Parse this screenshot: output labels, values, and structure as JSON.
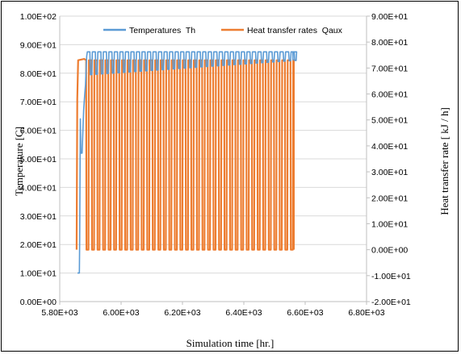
{
  "chart_data": {
    "type": "line",
    "title": "",
    "xlabel": "Simulation time  [hr.]",
    "ylabel_left": "Temperature [C]",
    "ylabel_right": "Heat transfer rate [ kJ / h]",
    "xlim": [
      5800,
      6800
    ],
    "ylim_left": [
      0,
      100
    ],
    "ylim_right": [
      -20,
      90
    ],
    "x_ticks": [
      "5.80E+03",
      "6.00E+03",
      "6.20E+03",
      "6.40E+03",
      "6.60E+03",
      "6.80E+03"
    ],
    "y_left_ticks": [
      "0.00E+00",
      "1.00E+01",
      "2.00E+01",
      "3.00E+01",
      "4.00E+01",
      "5.00E+01",
      "6.00E+01",
      "7.00E+01",
      "8.00E+01",
      "9.00E+01",
      "1.00E+02"
    ],
    "y_right_ticks": [
      "-2.00E+01",
      "-1.00E+01",
      "0.00E+00",
      "1.00E+01",
      "2.00E+01",
      "3.00E+01",
      "4.00E+01",
      "5.00E+01",
      "6.00E+01",
      "7.00E+01",
      "8.00E+01",
      "9.00E+01"
    ],
    "grid": "horizontal",
    "legend_position": "top",
    "series": [
      {
        "name": "Temperatures  Th",
        "axis": "left",
        "color": "#5B9BD5",
        "x_start": 5858,
        "x_end": 6560,
        "initial_points": [
          [
            5858,
            10
          ],
          [
            5864,
            10
          ],
          [
            5865,
            22
          ],
          [
            5867,
            64
          ],
          [
            5869,
            52
          ],
          [
            5873,
            52
          ],
          [
            5878,
            67
          ],
          [
            5881,
            72
          ],
          [
            5884,
            76
          ],
          [
            5886,
            82
          ],
          [
            5888,
            86
          ]
        ],
        "steady_high": 87.5,
        "steady_low": 79.5,
        "steady_low_end": 84.5,
        "period_hr": 18
      },
      {
        "name": "Heat transfer rates  Qaux",
        "axis": "right",
        "color": "#ED7D31",
        "x_start": 5855,
        "x_end": 6563,
        "initial_points": [
          [
            5855,
            0
          ],
          [
            5857,
            58
          ],
          [
            5860,
            73
          ],
          [
            5880,
            73.5
          ]
        ],
        "high": 73,
        "low": 0,
        "period_hr": 18
      }
    ]
  }
}
